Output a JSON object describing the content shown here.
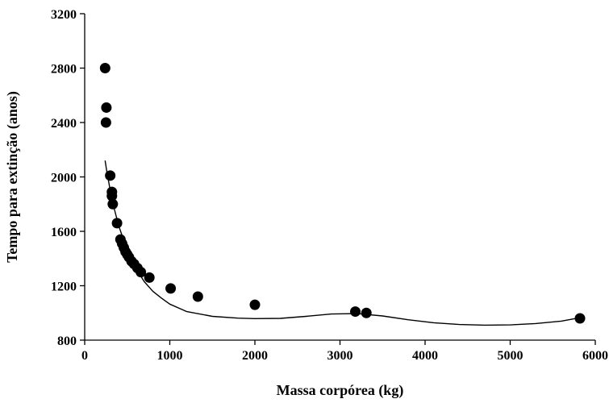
{
  "chart_data": {
    "type": "scatter",
    "xlabel": "Massa corpórea (kg)",
    "ylabel": "Tempo para extinção (anos)",
    "xlim": [
      0,
      6000
    ],
    "ylim": [
      800,
      3200
    ],
    "xticks": [
      0,
      1000,
      2000,
      3000,
      4000,
      5000,
      6000
    ],
    "yticks": [
      800,
      1200,
      1600,
      2000,
      2400,
      2800,
      3200
    ],
    "grid": false,
    "points": [
      {
        "x": 240,
        "y": 2800
      },
      {
        "x": 255,
        "y": 2510
      },
      {
        "x": 250,
        "y": 2400
      },
      {
        "x": 300,
        "y": 2010
      },
      {
        "x": 320,
        "y": 1890
      },
      {
        "x": 320,
        "y": 1860
      },
      {
        "x": 330,
        "y": 1800
      },
      {
        "x": 380,
        "y": 1660
      },
      {
        "x": 420,
        "y": 1540
      },
      {
        "x": 440,
        "y": 1510
      },
      {
        "x": 460,
        "y": 1480
      },
      {
        "x": 480,
        "y": 1450
      },
      {
        "x": 500,
        "y": 1430
      },
      {
        "x": 520,
        "y": 1410
      },
      {
        "x": 550,
        "y": 1380
      },
      {
        "x": 580,
        "y": 1360
      },
      {
        "x": 620,
        "y": 1330
      },
      {
        "x": 660,
        "y": 1300
      },
      {
        "x": 760,
        "y": 1260
      },
      {
        "x": 1010,
        "y": 1180
      },
      {
        "x": 1330,
        "y": 1120
      },
      {
        "x": 2000,
        "y": 1060
      },
      {
        "x": 3180,
        "y": 1010
      },
      {
        "x": 3310,
        "y": 1000
      },
      {
        "x": 5820,
        "y": 960
      }
    ],
    "fit_line": [
      {
        "x": 240,
        "y": 2120
      },
      {
        "x": 260,
        "y": 2040
      },
      {
        "x": 300,
        "y": 1900
      },
      {
        "x": 350,
        "y": 1760
      },
      {
        "x": 400,
        "y": 1640
      },
      {
        "x": 500,
        "y": 1460
      },
      {
        "x": 600,
        "y": 1330
      },
      {
        "x": 700,
        "y": 1230
      },
      {
        "x": 800,
        "y": 1160
      },
      {
        "x": 900,
        "y": 1110
      },
      {
        "x": 1000,
        "y": 1065
      },
      {
        "x": 1200,
        "y": 1010
      },
      {
        "x": 1500,
        "y": 975
      },
      {
        "x": 1800,
        "y": 962
      },
      {
        "x": 2000,
        "y": 958
      },
      {
        "x": 2300,
        "y": 960
      },
      {
        "x": 2600,
        "y": 975
      },
      {
        "x": 2900,
        "y": 992
      },
      {
        "x": 3200,
        "y": 995
      },
      {
        "x": 3500,
        "y": 978
      },
      {
        "x": 3800,
        "y": 950
      },
      {
        "x": 4100,
        "y": 928
      },
      {
        "x": 4400,
        "y": 915
      },
      {
        "x": 4700,
        "y": 910
      },
      {
        "x": 5000,
        "y": 912
      },
      {
        "x": 5300,
        "y": 922
      },
      {
        "x": 5600,
        "y": 940
      },
      {
        "x": 5820,
        "y": 965
      }
    ]
  }
}
